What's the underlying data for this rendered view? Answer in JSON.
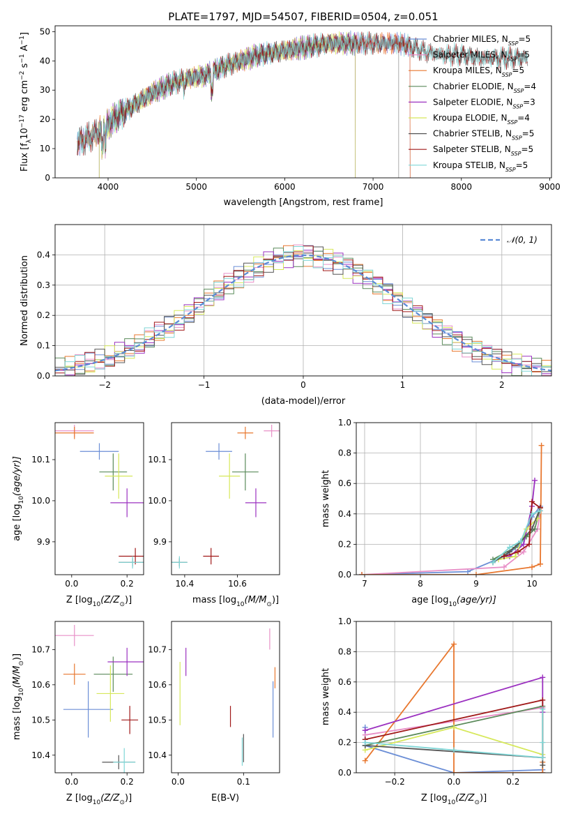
{
  "figure": {
    "title": "PLATE=1797, MJD=54507, FIBERID=0504, z=0.051"
  },
  "colors": {
    "Chabrier MILES": "#6b8ed6",
    "Salpeter MILES": "#e88fc7",
    "Kroupa MILES": "#e8772e",
    "Chabrier ELODIE": "#5a8a5a",
    "Salpeter ELODIE": "#9b30c0",
    "Kroupa ELODIE": "#d6e85a",
    "Chabrier STELIB": "#555555",
    "Salpeter STELIB": "#a01818",
    "Kroupa STELIB": "#7fd6d6"
  },
  "chart_data": [
    {
      "id": "spectrum",
      "type": "line",
      "xlabel": "wavelength [Angstrom, rest frame]",
      "ylabel_parts": [
        "Flux [f",
        "λ",
        "10",
        "−17",
        " erg cm",
        "−2",
        " s",
        "−1",
        " A",
        "−1",
        "]"
      ],
      "xlim": [
        3400,
        9020
      ],
      "ylim": [
        0,
        52
      ],
      "xticks": [
        4000,
        5000,
        6000,
        7000,
        8000,
        9000
      ],
      "yticks": [
        0,
        10,
        20,
        30,
        40,
        50
      ],
      "legend_position": "top-right",
      "legend": [
        {
          "name": "Chabrier MILES",
          "n": "5"
        },
        {
          "name": "Salpeter MILES",
          "n": "5"
        },
        {
          "name": "Kroupa MILES",
          "n": "5"
        },
        {
          "name": "Chabrier ELODIE",
          "n": "4"
        },
        {
          "name": "Salpeter ELODIE",
          "n": "3"
        },
        {
          "name": "Kroupa ELODIE",
          "n": "4"
        },
        {
          "name": "Chabrier STELIB",
          "n": "5"
        },
        {
          "name": "Salpeter STELIB",
          "n": "5"
        },
        {
          "name": "Kroupa STELIB",
          "n": "5"
        }
      ],
      "continuum": {
        "x": [
          3650,
          3800,
          3950,
          4100,
          4300,
          4500,
          4700,
          4900,
          5100,
          5300,
          5500,
          5700,
          5900,
          6100,
          6300,
          6500,
          6700,
          6900,
          7100,
          7300,
          7420,
          7600,
          7800,
          8000,
          8200,
          8400,
          8600,
          8750
        ],
        "y": [
          12,
          14,
          17,
          21,
          25,
          29,
          32,
          34,
          35,
          38,
          40,
          42,
          43,
          44,
          45,
          46,
          46,
          46,
          46,
          46,
          45,
          43,
          42,
          42,
          41,
          41,
          41,
          41
        ]
      },
      "wavelength_range": {
        "MILES": [
          3650,
          7420
        ],
        "ELODIE": [
          3900,
          6800
        ],
        "STELIB": [
          3650,
          8750
        ]
      },
      "drops": [
        3920,
        6800,
        7290,
        7420
      ]
    },
    {
      "id": "residuals",
      "type": "histogram",
      "xlabel": "(data-model)/error",
      "ylabel": "Normed distribution",
      "xlim": [
        -2.5,
        2.5
      ],
      "ylim": [
        0,
        0.5
      ],
      "xticks": [
        -2,
        -1,
        0,
        1,
        2
      ],
      "yticks": [
        0.0,
        0.1,
        0.2,
        0.3,
        0.4
      ],
      "grid": true,
      "reference_label": "𝒩(0, 1)",
      "legend_position": "top-right",
      "bin_width": 0.1
    },
    {
      "id": "age-vs-Z",
      "type": "errorbar",
      "xlabel_parts": [
        "Z [log",
        "10",
        "(Z/Z",
        "⊙",
        ")]"
      ],
      "ylabel_parts": [
        "age  [log",
        "10",
        "(age/yr)]"
      ],
      "xlim": [
        -0.06,
        0.26
      ],
      "ylim": [
        9.82,
        10.19
      ],
      "xticks": [
        0.0,
        0.2
      ],
      "yticks": [
        9.9,
        10.0,
        10.1
      ],
      "points": [
        {
          "series": "Chabrier MILES",
          "x": 0.1,
          "xerr": 0.07,
          "y": 10.12,
          "yerr": 0.02
        },
        {
          "series": "Salpeter MILES",
          "x": 0.01,
          "xerr": 0.07,
          "y": 10.17,
          "yerr": 0.015
        },
        {
          "series": "Kroupa MILES",
          "x": 0.01,
          "xerr": 0.07,
          "y": 10.165,
          "yerr": 0.015
        },
        {
          "series": "Chabrier ELODIE",
          "x": 0.15,
          "xerr": 0.05,
          "y": 10.07,
          "yerr": 0.045
        },
        {
          "series": "Salpeter ELODIE",
          "x": 0.2,
          "xerr": 0.06,
          "y": 9.995,
          "yerr": 0.035
        },
        {
          "series": "Kroupa ELODIE",
          "x": 0.17,
          "xerr": 0.05,
          "y": 10.06,
          "yerr": 0.055
        },
        {
          "series": "Chabrier STELIB",
          "x": 0.22,
          "xerr": 0.05,
          "y": 9.85,
          "yerr": 0.01
        },
        {
          "series": "Salpeter STELIB",
          "x": 0.23,
          "xerr": 0.06,
          "y": 9.865,
          "yerr": 0.02
        },
        {
          "series": "Kroupa STELIB",
          "x": 0.22,
          "xerr": 0.05,
          "y": 9.85,
          "yerr": 0.015
        }
      ]
    },
    {
      "id": "age-vs-mass",
      "type": "errorbar",
      "xlabel_parts": [
        "mass [log",
        "10",
        "(M/M",
        "⊙",
        ")]"
      ],
      "xlim": [
        10.35,
        10.76
      ],
      "ylim": [
        9.82,
        10.19
      ],
      "xticks": [
        10.4,
        10.6
      ],
      "yticks": [
        9.9,
        10.0,
        10.1
      ],
      "points": [
        {
          "series": "Chabrier MILES",
          "x": 10.53,
          "xerr": 0.05,
          "y": 10.12,
          "yerr": 0.02
        },
        {
          "series": "Salpeter MILES",
          "x": 10.73,
          "xerr": 0.03,
          "y": 10.17,
          "yerr": 0.015
        },
        {
          "series": "Kroupa MILES",
          "x": 10.63,
          "xerr": 0.03,
          "y": 10.165,
          "yerr": 0.015
        },
        {
          "series": "Chabrier ELODIE",
          "x": 10.63,
          "xerr": 0.05,
          "y": 10.07,
          "yerr": 0.045
        },
        {
          "series": "Salpeter ELODIE",
          "x": 10.67,
          "xerr": 0.04,
          "y": 9.995,
          "yerr": 0.035
        },
        {
          "series": "Kroupa ELODIE",
          "x": 10.57,
          "xerr": 0.04,
          "y": 10.06,
          "yerr": 0.055
        },
        {
          "series": "Chabrier STELIB",
          "x": 10.38,
          "xerr": 0.03,
          "y": 9.85,
          "yerr": 0.01
        },
        {
          "series": "Salpeter STELIB",
          "x": 10.5,
          "xerr": 0.03,
          "y": 9.865,
          "yerr": 0.02
        },
        {
          "series": "Kroupa STELIB",
          "x": 10.38,
          "xerr": 0.03,
          "y": 9.85,
          "yerr": 0.015
        }
      ]
    },
    {
      "id": "mass-weight-vs-age",
      "type": "line",
      "xlabel_parts": [
        "age  [log",
        "10",
        "(age/yr)]"
      ],
      "ylabel": "mass weight",
      "xlim": [
        6.85,
        10.35
      ],
      "ylim": [
        0,
        1.0
      ],
      "xticks": [
        7,
        8,
        9,
        10
      ],
      "yticks": [
        0.0,
        0.2,
        0.4,
        0.6,
        0.8,
        1.0
      ],
      "grid": true,
      "series": [
        {
          "name": "Chabrier MILES",
          "x": [
            6.95,
            8.85,
            9.5,
            9.8,
            10.0,
            10.15
          ],
          "y": [
            0.0,
            0.02,
            0.12,
            0.2,
            0.38,
            0.45
          ]
        },
        {
          "name": "Salpeter MILES",
          "x": [
            6.95,
            9.5,
            9.85,
            10.1,
            10.15
          ],
          "y": [
            0.0,
            0.05,
            0.15,
            0.3,
            0.42
          ]
        },
        {
          "name": "Kroupa MILES",
          "x": [
            6.95,
            9.0,
            10.0,
            10.15,
            10.17
          ],
          "y": [
            0.0,
            0.0,
            0.05,
            0.07,
            0.85
          ]
        },
        {
          "name": "Chabrier ELODIE",
          "x": [
            9.3,
            9.7,
            9.9,
            10.05,
            10.15
          ],
          "y": [
            0.1,
            0.18,
            0.25,
            0.3,
            0.44
          ]
        },
        {
          "name": "Salpeter ELODIE",
          "x": [
            9.6,
            9.85,
            10.0,
            10.05
          ],
          "y": [
            0.12,
            0.2,
            0.45,
            0.62
          ]
        },
        {
          "name": "Kroupa ELODIE",
          "x": [
            9.4,
            9.7,
            9.9,
            10.1
          ],
          "y": [
            0.1,
            0.12,
            0.3,
            0.37
          ]
        },
        {
          "name": "Chabrier STELIB",
          "x": [
            9.3,
            9.6,
            9.8,
            10.0,
            10.15
          ],
          "y": [
            0.08,
            0.15,
            0.22,
            0.3,
            0.44
          ]
        },
        {
          "name": "Salpeter STELIB",
          "x": [
            9.5,
            9.75,
            9.95,
            10.0,
            10.15
          ],
          "y": [
            0.12,
            0.15,
            0.2,
            0.48,
            0.44
          ]
        },
        {
          "name": "Kroupa STELIB",
          "x": [
            9.3,
            9.6,
            9.8,
            10.0,
            10.15
          ],
          "y": [
            0.08,
            0.18,
            0.22,
            0.4,
            0.42
          ]
        }
      ]
    },
    {
      "id": "mass-vs-Z",
      "type": "errorbar",
      "xlabel_parts": [
        "Z [log",
        "10",
        "(Z/Z",
        "⊙",
        ")]"
      ],
      "ylabel_parts": [
        "mass [log",
        "10",
        "(M/M",
        "⊙",
        ")]"
      ],
      "xlim": [
        -0.06,
        0.26
      ],
      "ylim": [
        10.35,
        10.78
      ],
      "xticks": [
        0.0,
        0.2
      ],
      "yticks": [
        10.4,
        10.5,
        10.6,
        10.7
      ],
      "points": [
        {
          "series": "Chabrier MILES",
          "x": 0.06,
          "xerr": 0.09,
          "y": 10.53,
          "yerr": 0.08
        },
        {
          "series": "Salpeter MILES",
          "x": 0.01,
          "xerr": 0.07,
          "y": 10.74,
          "yerr": 0.03
        },
        {
          "series": "Kroupa MILES",
          "x": 0.01,
          "xerr": 0.04,
          "y": 10.63,
          "yerr": 0.03
        },
        {
          "series": "Chabrier ELODIE",
          "x": 0.15,
          "xerr": 0.07,
          "y": 10.63,
          "yerr": 0.05
        },
        {
          "series": "Salpeter ELODIE",
          "x": 0.2,
          "xerr": 0.07,
          "y": 10.665,
          "yerr": 0.04
        },
        {
          "series": "Kroupa ELODIE",
          "x": 0.14,
          "xerr": 0.05,
          "y": 10.575,
          "yerr": 0.08
        },
        {
          "series": "Chabrier STELIB",
          "x": 0.17,
          "xerr": 0.06,
          "y": 10.38,
          "yerr": 0.02
        },
        {
          "series": "Salpeter STELIB",
          "x": 0.21,
          "xerr": 0.03,
          "y": 10.5,
          "yerr": 0.04
        },
        {
          "series": "Kroupa STELIB",
          "x": 0.19,
          "xerr": 0.04,
          "y": 10.38,
          "yerr": 0.04
        }
      ]
    },
    {
      "id": "mass-vs-EBV",
      "type": "errorbar",
      "xlabel": "E(B-V)",
      "xlim": [
        -0.01,
        0.155
      ],
      "ylim": [
        10.35,
        10.78
      ],
      "xticks": [
        0.0,
        0.1
      ],
      "yticks": [
        10.4,
        10.5,
        10.6,
        10.7
      ],
      "points": [
        {
          "series": "Chabrier MILES",
          "x": 0.145,
          "xerr": 0.0,
          "y": 10.53,
          "yerr": 0.08
        },
        {
          "series": "Salpeter MILES",
          "x": 0.14,
          "xerr": 0.0,
          "y": 10.73,
          "yerr": 0.03
        },
        {
          "series": "Kroupa MILES",
          "x": 0.148,
          "xerr": 0.0,
          "y": 10.62,
          "yerr": 0.03
        },
        {
          "series": "Salpeter ELODIE",
          "x": 0.012,
          "xerr": 0.0,
          "y": 10.665,
          "yerr": 0.04
        },
        {
          "series": "Kroupa ELODIE",
          "x": 0.003,
          "xerr": 0.0,
          "y": 10.575,
          "yerr": 0.09
        },
        {
          "series": "Chabrier STELIB",
          "x": 0.1,
          "xerr": 0.0,
          "y": 10.42,
          "yerr": 0.04
        },
        {
          "series": "Salpeter STELIB",
          "x": 0.08,
          "xerr": 0.0,
          "y": 10.51,
          "yerr": 0.03
        },
        {
          "series": "Kroupa STELIB",
          "x": 0.098,
          "xerr": 0.0,
          "y": 10.41,
          "yerr": 0.04
        }
      ]
    },
    {
      "id": "mass-weight-vs-Z",
      "type": "line",
      "xlabel_parts": [
        "Z [log",
        "10",
        "(Z/Z",
        "⊙",
        ")]"
      ],
      "ylabel": "mass weight",
      "xlim": [
        -0.33,
        0.33
      ],
      "ylim": [
        0,
        1.0
      ],
      "xticks": [
        -0.2,
        0.0,
        0.2
      ],
      "yticks": [
        0.0,
        0.2,
        0.4,
        0.6,
        0.8,
        1.0
      ],
      "grid": true,
      "series": [
        {
          "name": "Chabrier MILES",
          "x": [
            -0.3,
            -0.3,
            0.0,
            0.3,
            0.3
          ],
          "y": [
            0.3,
            0.18,
            0.0,
            0.02,
            0.0
          ]
        },
        {
          "name": "Salpeter MILES",
          "x": [
            -0.3,
            0.3
          ],
          "y": [
            0.25,
            0.43
          ]
        },
        {
          "name": "Kroupa MILES",
          "x": [
            -0.3,
            0.0,
            0.0,
            0.3,
            0.3
          ],
          "y": [
            0.08,
            0.85,
            0.0,
            0.0,
            0.07
          ]
        },
        {
          "name": "Chabrier ELODIE",
          "x": [
            -0.3,
            0.3,
            0.3
          ],
          "y": [
            0.18,
            0.44,
            0.1
          ]
        },
        {
          "name": "Salpeter ELODIE",
          "x": [
            -0.3,
            0.3,
            0.3
          ],
          "y": [
            0.28,
            0.63,
            0.4
          ]
        },
        {
          "name": "Kroupa ELODIE",
          "x": [
            -0.3,
            0.0,
            0.3
          ],
          "y": [
            0.15,
            0.3,
            0.12
          ]
        },
        {
          "name": "Chabrier STELIB",
          "x": [
            -0.3,
            0.3,
            0.3
          ],
          "y": [
            0.18,
            0.1,
            0.05
          ]
        },
        {
          "name": "Salpeter STELIB",
          "x": [
            -0.3,
            0.3,
            0.3
          ],
          "y": [
            0.22,
            0.48,
            0.1
          ]
        },
        {
          "name": "Kroupa STELIB",
          "x": [
            -0.3,
            0.0,
            0.3,
            0.3,
            0.3
          ],
          "y": [
            0.2,
            0.15,
            0.1,
            0.42,
            0.2
          ]
        }
      ]
    }
  ]
}
